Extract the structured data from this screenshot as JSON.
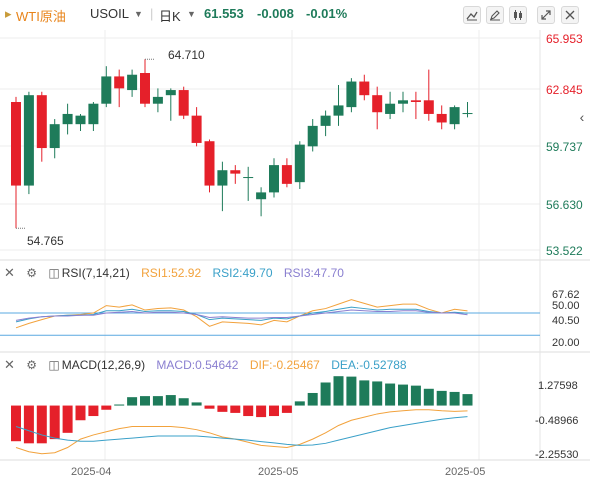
{
  "header": {
    "symbol_name": "WTI原油",
    "symbol_code": "USOIL",
    "period": "日K",
    "price": "61.553",
    "change": "-0.008",
    "change_pct": "-0.01%",
    "colors": {
      "up": "#1e7b5a",
      "down": "#e5202a",
      "symbol": "#e8841a"
    }
  },
  "controls": [
    "draw-icon",
    "edit-icon",
    "candle-style-icon",
    "expand-icon",
    "close-icon"
  ],
  "main_chart": {
    "y_ticks": [
      "65.953",
      "62.845",
      "59.737",
      "56.630",
      "53.522"
    ],
    "high_label": "64.710",
    "low_label": "54.765"
  },
  "rsi": {
    "title": "RSI(7,14,21)",
    "rsi1": "RSI1:52.92",
    "rsi2": "RSI2:49.70",
    "rsi3": "RSI3:47.70",
    "y_ticks": [
      "67.62",
      "50.00",
      "40.50",
      "20.00"
    ],
    "colors": {
      "rsi1": "#f2a23c",
      "rsi2": "#3aa0c8",
      "rsi3": "#8a7fd0"
    }
  },
  "macd": {
    "title": "MACD(12,26,9)",
    "macd": "MACD:0.54642",
    "dif": "DIF:-0.25467",
    "dea": "DEA:-0.52788",
    "y_ticks": [
      "1.27598",
      "-0.48966",
      "-2.25530"
    ],
    "colors": {
      "macd": "#8a7fd0",
      "dif": "#f2a23c",
      "dea": "#3aa0c8"
    }
  },
  "x_axis": {
    "labels": [
      "2025-04",
      "2025-05",
      "2025-05"
    ]
  },
  "chart_data": [
    {
      "type": "candlestick",
      "title": "WTI原油 USOIL 日K",
      "ylim": [
        53.522,
        65.953
      ],
      "candles": [
        {
          "o": 62.2,
          "h": 62.5,
          "l": 54.8,
          "c": 57.3
        },
        {
          "o": 57.3,
          "h": 62.8,
          "l": 56.8,
          "c": 62.6
        },
        {
          "o": 62.6,
          "h": 62.8,
          "l": 58.7,
          "c": 59.5
        },
        {
          "o": 59.5,
          "h": 61.2,
          "l": 58.9,
          "c": 60.9
        },
        {
          "o": 60.9,
          "h": 62.1,
          "l": 60.3,
          "c": 61.5
        },
        {
          "o": 60.9,
          "h": 61.5,
          "l": 60.5,
          "c": 61.4
        },
        {
          "o": 60.9,
          "h": 62.2,
          "l": 60.5,
          "c": 62.1
        },
        {
          "o": 62.1,
          "h": 64.3,
          "l": 61.9,
          "c": 63.7
        },
        {
          "o": 63.7,
          "h": 64.1,
          "l": 61.9,
          "c": 63.0
        },
        {
          "o": 62.9,
          "h": 64.1,
          "l": 62.5,
          "c": 63.8
        },
        {
          "o": 63.9,
          "h": 64.71,
          "l": 61.9,
          "c": 62.1
        },
        {
          "o": 62.1,
          "h": 63.0,
          "l": 61.6,
          "c": 62.5
        },
        {
          "o": 62.6,
          "h": 63.0,
          "l": 61.1,
          "c": 62.9
        },
        {
          "o": 62.9,
          "h": 63.1,
          "l": 61.2,
          "c": 61.4
        },
        {
          "o": 61.4,
          "h": 61.9,
          "l": 59.6,
          "c": 59.8
        },
        {
          "o": 59.9,
          "h": 60.0,
          "l": 56.9,
          "c": 57.3
        },
        {
          "o": 57.3,
          "h": 58.7,
          "l": 55.8,
          "c": 58.2
        },
        {
          "o": 58.2,
          "h": 58.5,
          "l": 57.4,
          "c": 58.0
        },
        {
          "o": 57.8,
          "h": 58.4,
          "l": 56.4,
          "c": 57.8
        },
        {
          "o": 56.5,
          "h": 57.2,
          "l": 55.5,
          "c": 56.9
        },
        {
          "o": 56.9,
          "h": 58.9,
          "l": 56.6,
          "c": 58.5
        },
        {
          "o": 58.5,
          "h": 58.9,
          "l": 57.2,
          "c": 57.4
        },
        {
          "o": 57.5,
          "h": 59.9,
          "l": 57.1,
          "c": 59.7
        },
        {
          "o": 59.6,
          "h": 61.2,
          "l": 59.3,
          "c": 60.8
        },
        {
          "o": 60.8,
          "h": 61.7,
          "l": 60.2,
          "c": 61.4
        },
        {
          "o": 61.4,
          "h": 63.2,
          "l": 60.8,
          "c": 62.0
        },
        {
          "o": 61.9,
          "h": 63.6,
          "l": 61.6,
          "c": 63.4
        },
        {
          "o": 63.4,
          "h": 63.8,
          "l": 62.3,
          "c": 62.6
        },
        {
          "o": 62.6,
          "h": 63.1,
          "l": 60.6,
          "c": 61.6
        },
        {
          "o": 61.5,
          "h": 62.8,
          "l": 61.2,
          "c": 62.1
        },
        {
          "o": 62.1,
          "h": 62.8,
          "l": 61.6,
          "c": 62.3
        },
        {
          "o": 62.3,
          "h": 62.8,
          "l": 61.2,
          "c": 62.2
        },
        {
          "o": 62.3,
          "h": 64.1,
          "l": 61.1,
          "c": 61.5
        },
        {
          "o": 61.5,
          "h": 62.0,
          "l": 60.6,
          "c": 61.0
        },
        {
          "o": 60.9,
          "h": 62.0,
          "l": 60.6,
          "c": 61.9
        },
        {
          "o": 61.55,
          "h": 62.2,
          "l": 61.3,
          "c": 61.553
        }
      ]
    },
    {
      "type": "line",
      "title": "RSI(7,14,21)",
      "ylim": [
        0,
        100
      ],
      "reference_lines": [
        20,
        50
      ],
      "series": [
        {
          "name": "RSI1",
          "values": [
            30,
            36,
            41,
            46,
            47,
            48,
            50,
            60,
            58,
            61,
            54,
            56,
            57,
            54,
            45,
            32,
            38,
            37,
            36,
            34,
            40,
            38,
            46,
            53,
            56,
            62,
            68,
            63,
            58,
            60,
            62,
            62,
            55,
            50,
            55,
            52.92
          ]
        },
        {
          "name": "RSI2",
          "values": [
            38,
            42,
            45,
            46,
            47,
            47,
            48,
            53,
            53,
            55,
            52,
            53,
            53,
            52,
            48,
            41,
            43,
            42,
            41,
            40,
            43,
            42,
            46,
            50,
            52,
            55,
            58,
            56,
            54,
            55,
            55,
            55,
            52,
            50,
            51,
            49.7
          ]
        },
        {
          "name": "RSI3",
          "values": [
            40,
            43,
            45,
            46,
            46,
            47,
            47,
            50,
            51,
            52,
            50,
            51,
            51,
            50,
            48,
            44,
            45,
            44,
            43,
            43,
            44,
            44,
            46,
            48,
            50,
            52,
            54,
            53,
            52,
            52,
            53,
            53,
            51,
            50,
            50,
            47.7
          ]
        }
      ]
    },
    {
      "type": "bar",
      "title": "MACD(12,26,9)",
      "ylim": [
        -2.5,
        1.6
      ],
      "series": [
        {
          "name": "MACD",
          "values": [
            -1.7,
            -1.8,
            -1.8,
            -1.6,
            -1.3,
            -0.7,
            -0.5,
            -0.2,
            0.05,
            0.4,
            0.45,
            0.45,
            0.5,
            0.35,
            0.15,
            -0.15,
            -0.3,
            -0.35,
            -0.5,
            -0.55,
            -0.5,
            -0.35,
            0.2,
            0.6,
            1.1,
            1.4,
            1.38,
            1.2,
            1.15,
            1.05,
            1.0,
            0.95,
            0.8,
            0.7,
            0.65,
            0.54642
          ]
        },
        {
          "name": "DIF",
          "values": [
            -2.0,
            -2.2,
            -2.3,
            -2.25,
            -2.0,
            -1.6,
            -1.4,
            -1.25,
            -1.1,
            -1.0,
            -1.0,
            -1.0,
            -1.0,
            -1.05,
            -1.15,
            -1.3,
            -1.5,
            -1.6,
            -1.75,
            -1.9,
            -1.95,
            -2.0,
            -1.85,
            -1.6,
            -1.3,
            -0.95,
            -0.7,
            -0.55,
            -0.4,
            -0.3,
            -0.25,
            -0.2,
            -0.2,
            -0.25,
            -0.28,
            -0.25467
          ]
        },
        {
          "name": "DEA",
          "values": [
            -1.0,
            -1.2,
            -1.4,
            -1.55,
            -1.65,
            -1.7,
            -1.7,
            -1.65,
            -1.6,
            -1.55,
            -1.5,
            -1.45,
            -1.45,
            -1.45,
            -1.45,
            -1.5,
            -1.55,
            -1.6,
            -1.65,
            -1.72,
            -1.78,
            -1.85,
            -1.9,
            -1.88,
            -1.8,
            -1.65,
            -1.5,
            -1.35,
            -1.2,
            -1.05,
            -0.95,
            -0.85,
            -0.75,
            -0.65,
            -0.58,
            -0.52788
          ]
        }
      ]
    }
  ]
}
